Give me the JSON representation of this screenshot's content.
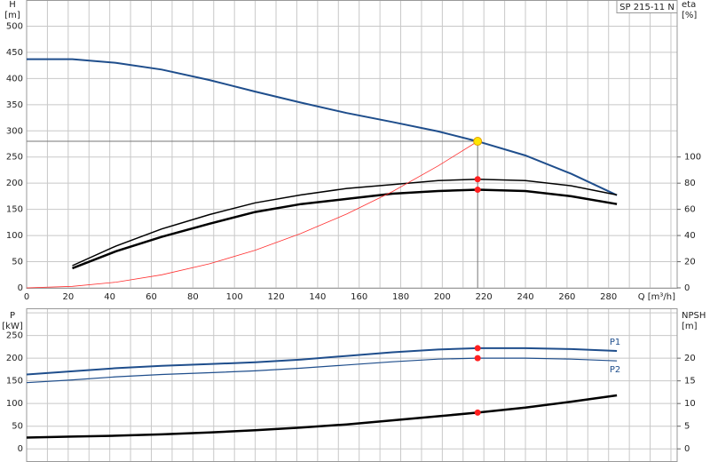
{
  "chart_data": [
    {
      "type": "line",
      "title": "SP 215-11 N",
      "xlabel": "Q [m³/h]",
      "ylabel": "H",
      "yunit": "[m]",
      "y2label": "eta",
      "y2unit": "[%]",
      "x": [
        0,
        22,
        43,
        65,
        88,
        110,
        132,
        154,
        176,
        198,
        217,
        240,
        262,
        284
      ],
      "xlim": [
        0,
        313
      ],
      "xticks": [
        0,
        20,
        40,
        60,
        80,
        100,
        120,
        140,
        160,
        180,
        200,
        220,
        240,
        260,
        280
      ],
      "x_minor_ticks": [
        10,
        30,
        50,
        70,
        90,
        110,
        130,
        150,
        170,
        190,
        210,
        230,
        250,
        270,
        290,
        300,
        310
      ],
      "ylim": [
        0,
        550
      ],
      "yticks": [
        0,
        50,
        100,
        150,
        200,
        250,
        300,
        350,
        400,
        450,
        500
      ],
      "y2lim": [
        0,
        220
      ],
      "y2ticks": [
        0,
        20,
        40,
        60,
        80,
        100
      ],
      "grid": true,
      "duty_x": 217,
      "duty_y": 280,
      "series": [
        {
          "color": "#1f4e8c",
          "width": 2,
          "values": [
            437,
            437,
            430,
            417,
            397,
            375,
            354,
            334,
            317,
            299,
            280,
            253,
            218,
            177
          ]
        },
        {
          "color": "#000000",
          "width": 1.5,
          "axis": "y2",
          "values": [
            null,
            17,
            32,
            45,
            56,
            65,
            71,
            76,
            79,
            82,
            83,
            82,
            78,
            71
          ]
        },
        {
          "color": "#000000",
          "width": 2.5,
          "axis": "y2",
          "values": [
            null,
            15,
            28,
            39,
            49,
            58,
            64,
            68,
            72,
            74,
            75,
            74,
            70,
            64
          ]
        },
        {
          "color": "#ff3030",
          "width": 0.8,
          "values": [
            0,
            2.9,
            10.9,
            25,
            46,
            72,
            104,
            141,
            184,
            233,
            280,
            null,
            null,
            null
          ]
        }
      ]
    },
    {
      "type": "line",
      "ylabel": "P",
      "yunit": "[kW]",
      "y2label": "NPSH",
      "y2unit": "[m]",
      "x": [
        0,
        22,
        43,
        65,
        88,
        110,
        132,
        154,
        176,
        198,
        217,
        240,
        262,
        284
      ],
      "xlim": [
        0,
        313
      ],
      "xticks": [
        0,
        20,
        40,
        60,
        80,
        100,
        120,
        140,
        160,
        180,
        200,
        220,
        240,
        260,
        280
      ],
      "x_minor_ticks": [
        10,
        30,
        50,
        70,
        90,
        110,
        130,
        150,
        170,
        190,
        210,
        230,
        250,
        270,
        290,
        300,
        310
      ],
      "ylim": [
        -27,
        310
      ],
      "yticks": [
        0,
        50,
        100,
        150,
        200,
        250,
        300
      ],
      "y2lim": [
        -2.7,
        31
      ],
      "y2ticks": [
        0,
        5,
        10,
        15,
        20
      ],
      "grid": true,
      "duty_x": 217,
      "series": [
        {
          "name": "P1",
          "color": "#1f4e8c",
          "width": 2,
          "values": [
            164,
            171,
            178,
            183,
            187,
            191,
            197,
            205,
            213,
            219,
            222,
            222,
            220,
            216
          ]
        },
        {
          "name": "P2",
          "color": "#1f4e8c",
          "width": 1.2,
          "values": [
            146,
            152,
            159,
            164,
            168,
            172,
            178,
            185,
            192,
            198,
            200,
            200,
            198,
            194
          ]
        },
        {
          "color": "#000000",
          "width": 2.5,
          "axis": "y2",
          "values": [
            2.5,
            2.7,
            2.9,
            3.2,
            3.6,
            4.1,
            4.7,
            5.4,
            6.3,
            7.2,
            8.0,
            9.1,
            10.4,
            11.8
          ]
        }
      ]
    }
  ]
}
